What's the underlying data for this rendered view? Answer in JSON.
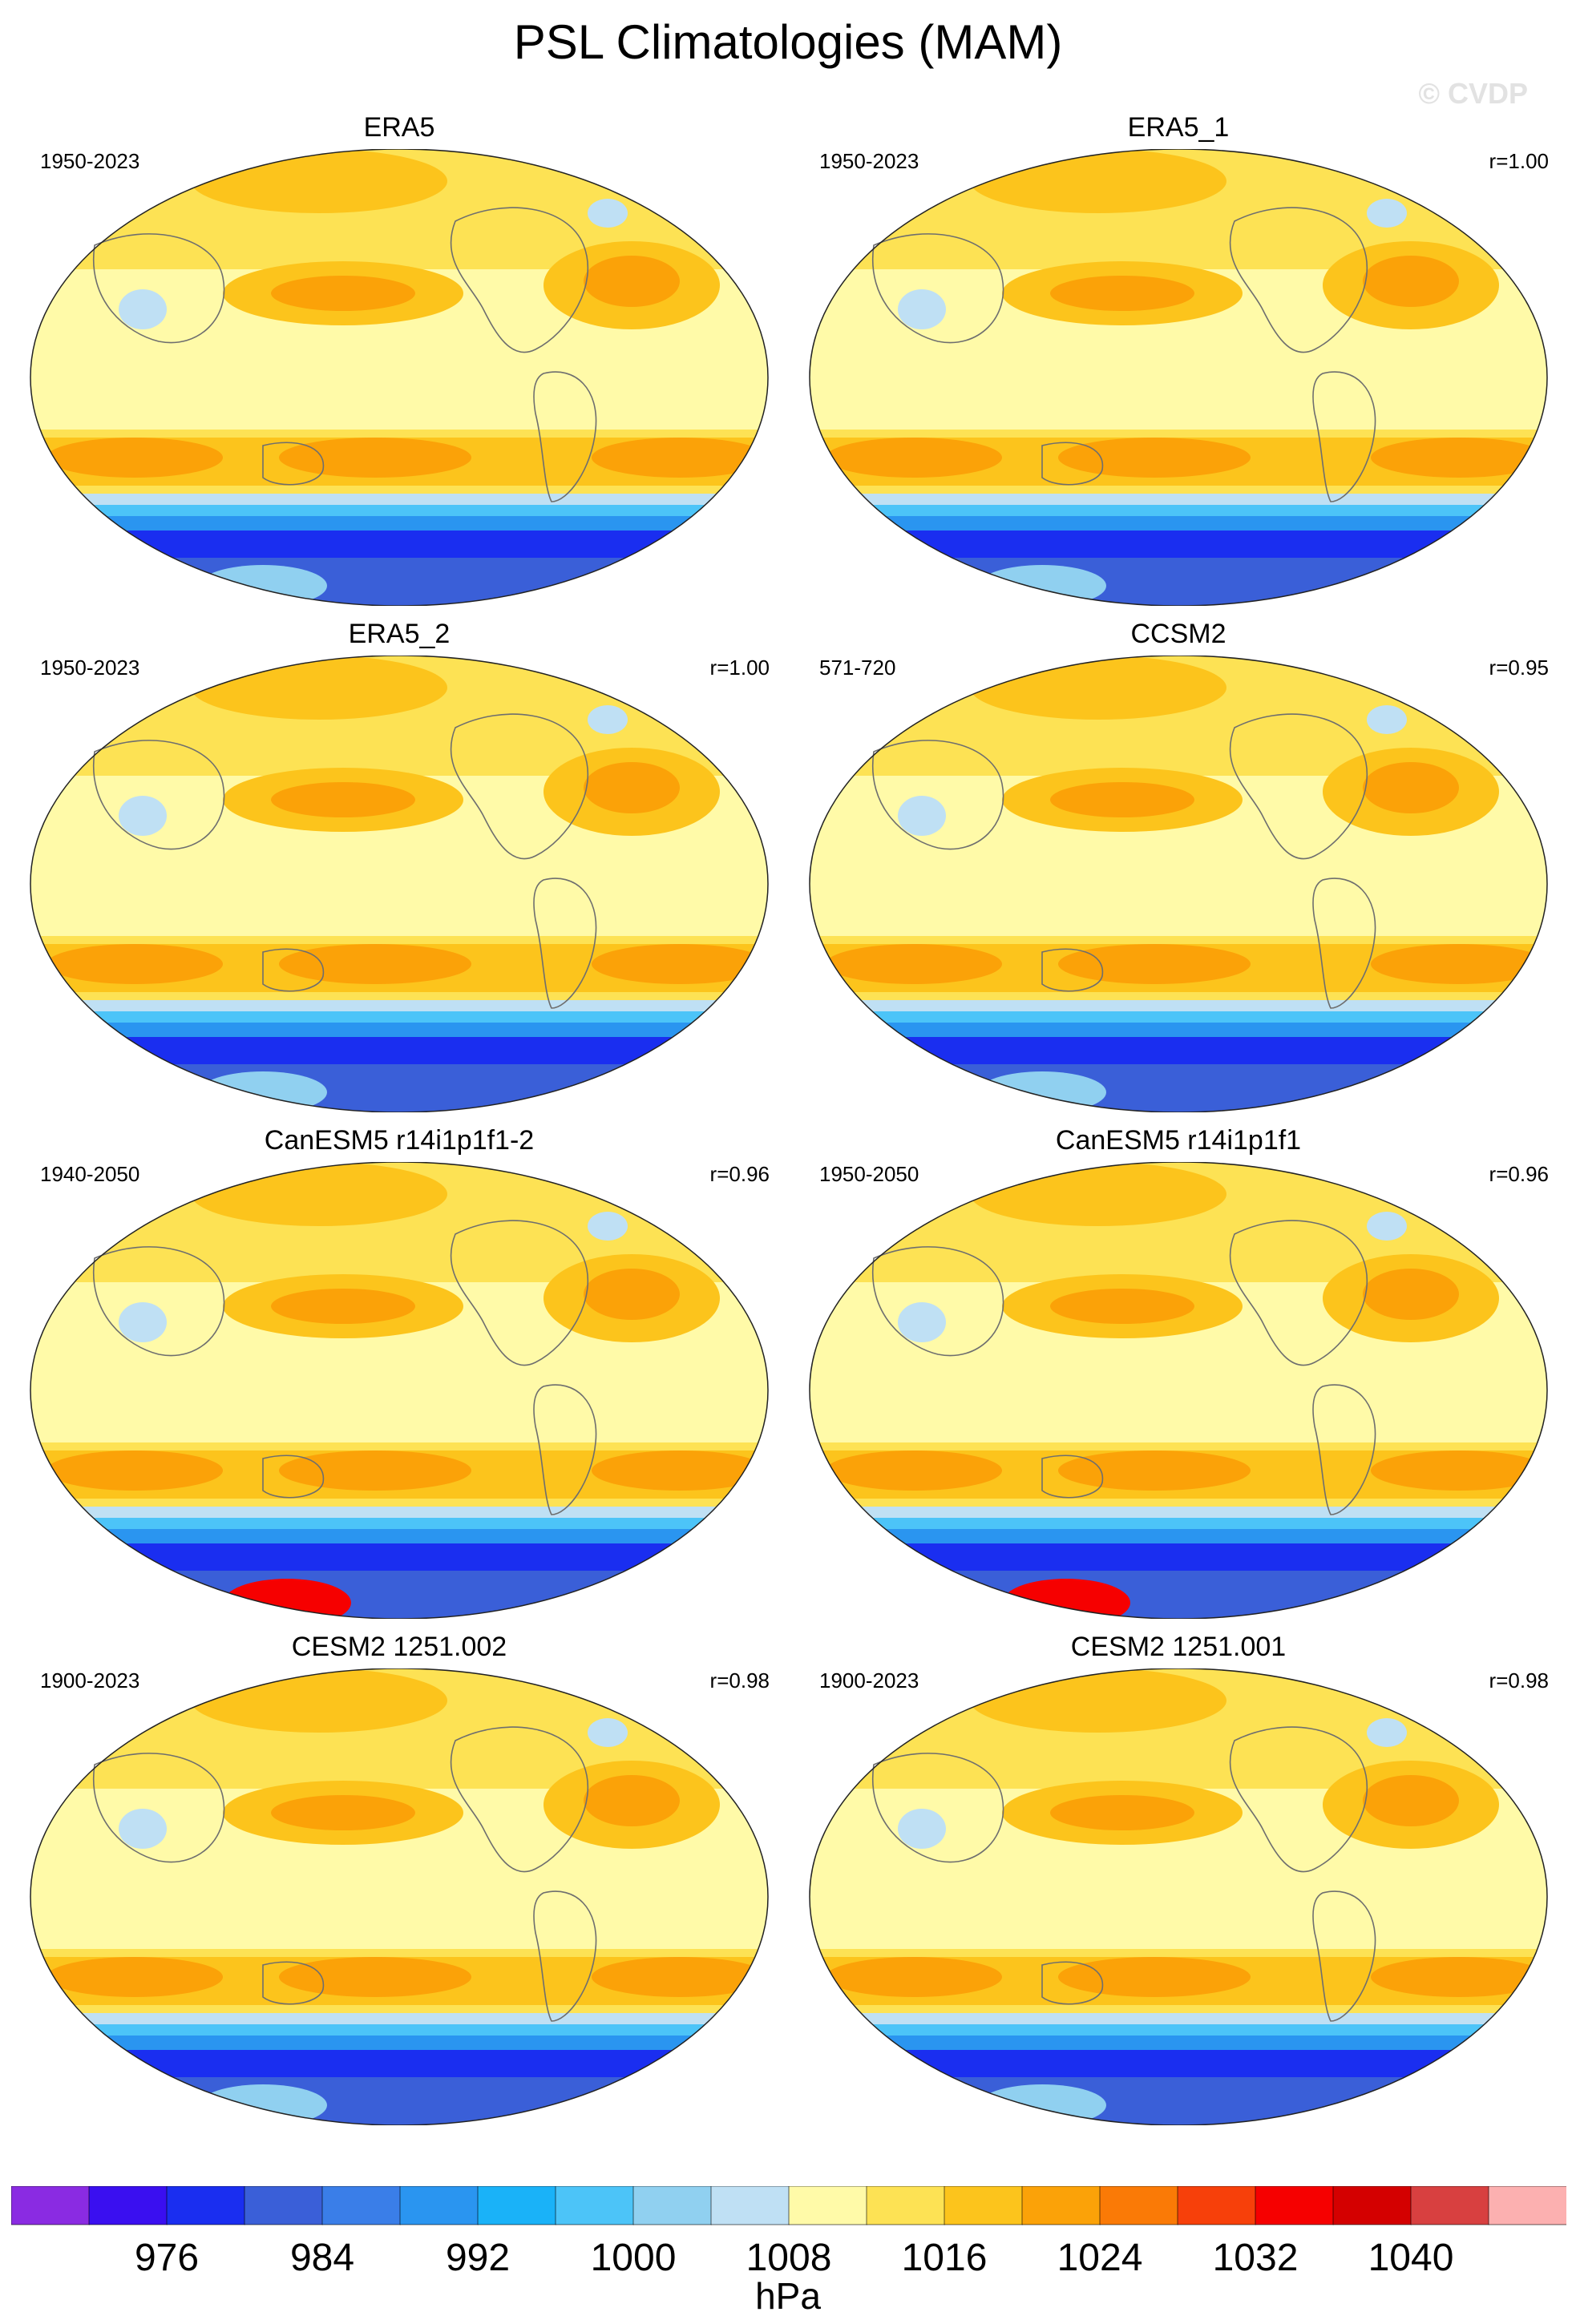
{
  "title": "PSL Climatologies (MAM)",
  "watermark": "© CVDP",
  "panels": [
    {
      "name": "ERA5",
      "period": "1950-2023",
      "corr": ""
    },
    {
      "name": "ERA5_1",
      "period": "1950-2023",
      "corr": "r=1.00"
    },
    {
      "name": "ERA5_2",
      "period": "1950-2023",
      "corr": "r=1.00"
    },
    {
      "name": "CCSM2",
      "period": "571-720",
      "corr": "r=0.95"
    },
    {
      "name": "CanESM5 r14i1p1f1-2",
      "period": "1940-2050",
      "corr": "r=0.96"
    },
    {
      "name": "CanESM5 r14i1p1f1",
      "period": "1950-2050",
      "corr": "r=0.96"
    },
    {
      "name": "CESM2 1251.002",
      "period": "1900-2023",
      "corr": "r=0.98"
    },
    {
      "name": "CESM2 1251.001",
      "period": "1900-2023",
      "corr": "r=0.98"
    }
  ],
  "colorbar": {
    "unit": "hPa",
    "labels": [
      "976",
      "984",
      "992",
      "1000",
      "1008",
      "1016",
      "1024",
      "1032",
      "1040"
    ],
    "colors": [
      "#8a2be2",
      "#3a0ff0",
      "#1a2ef0",
      "#3a5fd8",
      "#3a7ee8",
      "#2a95f0",
      "#1ab2f8",
      "#4cc4f8",
      "#90d0f0",
      "#bfe0f4",
      "#fffaa8",
      "#fde254",
      "#fcc41c",
      "#fba208",
      "#fa7a06",
      "#f7400a",
      "#f60000",
      "#d40000",
      "#d84040",
      "#fcb0b0"
    ]
  }
}
